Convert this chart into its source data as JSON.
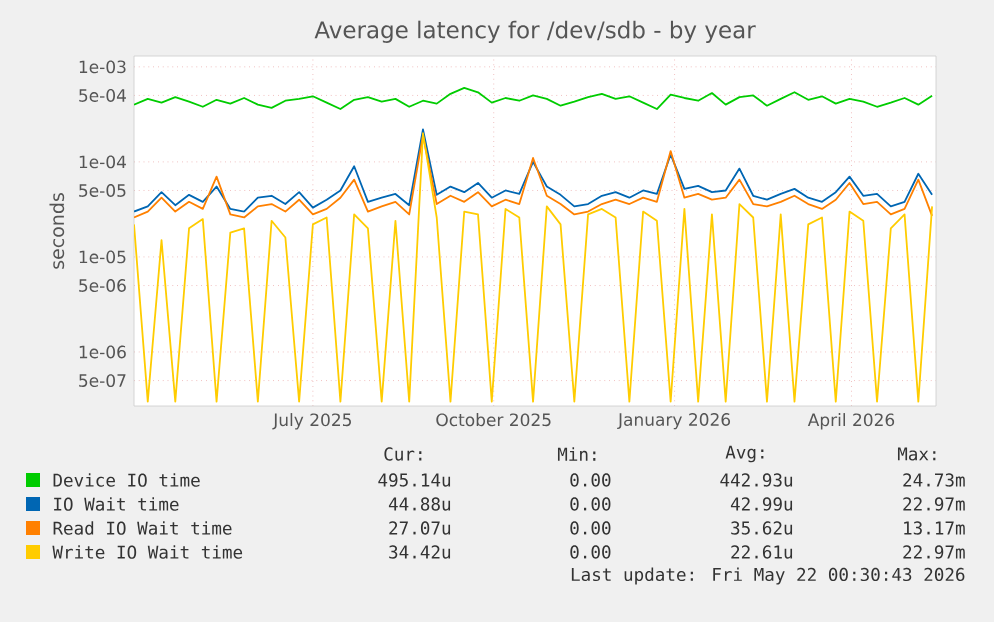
{
  "chart_data": {
    "type": "line",
    "title": "Average latency for /dev/sdb - by year",
    "ylabel": "seconds",
    "log": "y",
    "grid": true,
    "legend": "bottom",
    "xlim": [
      "2025-04-01",
      "2026-05-14"
    ],
    "xticks": [
      {
        "value": "2025-07-01",
        "label": "July 2025"
      },
      {
        "value": "2025-10-01",
        "label": "October 2025"
      },
      {
        "value": "2026-01-01",
        "label": "January 2026"
      },
      {
        "value": "2026-04-01",
        "label": "April 2026"
      }
    ],
    "ylim": [
      2.7e-07,
      0.0013
    ],
    "yticks": [
      {
        "value": 0.001,
        "label": "1e-03"
      },
      {
        "value": 0.0005,
        "label": "5e-04"
      },
      {
        "value": 0.0001,
        "label": "1e-04"
      },
      {
        "value": 5e-05,
        "label": "5e-05"
      },
      {
        "value": 1e-05,
        "label": "1e-05"
      },
      {
        "value": 5e-06,
        "label": "5e-06"
      },
      {
        "value": 1e-06,
        "label": "1e-06"
      },
      {
        "value": 5e-07,
        "label": "5e-07"
      }
    ],
    "x": [
      "2025-04-01",
      "2025-04-08",
      "2025-04-15",
      "2025-04-22",
      "2025-04-29",
      "2025-05-06",
      "2025-05-13",
      "2025-05-20",
      "2025-05-27",
      "2025-06-03",
      "2025-06-10",
      "2025-06-17",
      "2025-06-24",
      "2025-07-01",
      "2025-07-08",
      "2025-07-15",
      "2025-07-22",
      "2025-07-29",
      "2025-08-05",
      "2025-08-12",
      "2025-08-19",
      "2025-08-26",
      "2025-09-02",
      "2025-09-09",
      "2025-09-16",
      "2025-09-23",
      "2025-09-30",
      "2025-10-07",
      "2025-10-14",
      "2025-10-21",
      "2025-10-28",
      "2025-11-04",
      "2025-11-11",
      "2025-11-18",
      "2025-11-25",
      "2025-12-02",
      "2025-12-09",
      "2025-12-16",
      "2025-12-23",
      "2025-12-30",
      "2026-01-06",
      "2026-01-13",
      "2026-01-20",
      "2026-01-27",
      "2026-02-03",
      "2026-02-10",
      "2026-02-17",
      "2026-02-24",
      "2026-03-03",
      "2026-03-10",
      "2026-03-17",
      "2026-03-24",
      "2026-03-31",
      "2026-04-07",
      "2026-04-14",
      "2026-04-21",
      "2026-04-28",
      "2026-05-05",
      "2026-05-12"
    ],
    "series": [
      {
        "name": "Device IO time",
        "color": "#00cc00",
        "values": [
          0.0004,
          0.00046,
          0.00042,
          0.00048,
          0.00043,
          0.00038,
          0.00045,
          0.00041,
          0.00047,
          0.0004,
          0.00037,
          0.00044,
          0.00046,
          0.00049,
          0.00042,
          0.00036,
          0.00045,
          0.00048,
          0.00043,
          0.00046,
          0.00038,
          0.00044,
          0.00041,
          0.00052,
          0.0006,
          0.00054,
          0.00042,
          0.00047,
          0.00044,
          0.0005,
          0.00046,
          0.00039,
          0.00043,
          0.00048,
          0.00052,
          0.00046,
          0.00049,
          0.00042,
          0.00036,
          0.00051,
          0.00047,
          0.00044,
          0.00053,
          0.0004,
          0.00048,
          0.0005,
          0.00039,
          0.00046,
          0.00054,
          0.00045,
          0.00049,
          0.00041,
          0.00046,
          0.00043,
          0.00038,
          0.00042,
          0.00047,
          0.0004,
          0.000495
        ]
      },
      {
        "name": "IO Wait time",
        "color": "#0066b3",
        "values": [
          3e-05,
          3.4e-05,
          4.8e-05,
          3.5e-05,
          4.5e-05,
          3.8e-05,
          5.5e-05,
          3.2e-05,
          3e-05,
          4.2e-05,
          4.4e-05,
          3.6e-05,
          4.8e-05,
          3.3e-05,
          4e-05,
          5e-05,
          9e-05,
          3.8e-05,
          4.2e-05,
          4.6e-05,
          3.5e-05,
          0.00022,
          4.5e-05,
          5.5e-05,
          4.8e-05,
          6e-05,
          4.2e-05,
          5e-05,
          4.6e-05,
          0.0001,
          5.5e-05,
          4.5e-05,
          3.4e-05,
          3.6e-05,
          4.4e-05,
          4.8e-05,
          4.2e-05,
          5e-05,
          4.6e-05,
          0.00012,
          5.2e-05,
          5.6e-05,
          4.8e-05,
          5e-05,
          8.5e-05,
          4.4e-05,
          4e-05,
          4.6e-05,
          5.2e-05,
          4.2e-05,
          3.8e-05,
          4.8e-05,
          7e-05,
          4.4e-05,
          4.6e-05,
          3.4e-05,
          3.8e-05,
          7.5e-05,
          4.5e-05
        ]
      },
      {
        "name": "Read IO Wait time",
        "color": "#ff8000",
        "values": [
          2.6e-05,
          3e-05,
          4.2e-05,
          3e-05,
          3.8e-05,
          3.2e-05,
          7e-05,
          2.8e-05,
          2.6e-05,
          3.4e-05,
          3.6e-05,
          3e-05,
          4e-05,
          2.8e-05,
          3.2e-05,
          4.2e-05,
          6.5e-05,
          3e-05,
          3.4e-05,
          3.8e-05,
          2.8e-05,
          0.00019,
          3.6e-05,
          4.4e-05,
          3.8e-05,
          4.8e-05,
          3.4e-05,
          4e-05,
          3.6e-05,
          0.00011,
          4.4e-05,
          3.6e-05,
          2.8e-05,
          3e-05,
          3.6e-05,
          4e-05,
          3.6e-05,
          4.2e-05,
          3.8e-05,
          0.00013,
          4.2e-05,
          4.6e-05,
          4e-05,
          4.2e-05,
          6.5e-05,
          3.6e-05,
          3.4e-05,
          3.8e-05,
          4.4e-05,
          3.6e-05,
          3.2e-05,
          4e-05,
          6e-05,
          3.6e-05,
          3.8e-05,
          2.8e-05,
          3.2e-05,
          6.5e-05,
          2.7e-05
        ]
      },
      {
        "name": "Write IO Wait time",
        "color": "#ffcc00",
        "values": [
          2.2e-05,
          3e-07,
          1.5e-05,
          3e-07,
          2e-05,
          2.5e-05,
          3e-07,
          1.8e-05,
          2e-05,
          3e-07,
          2.4e-05,
          1.6e-05,
          3e-07,
          2.2e-05,
          2.6e-05,
          3e-07,
          2.8e-05,
          2e-05,
          3e-07,
          2.4e-05,
          3e-07,
          0.0002,
          2.6e-05,
          3e-07,
          3e-05,
          2.8e-05,
          3e-07,
          3.2e-05,
          2.6e-05,
          3e-07,
          3.4e-05,
          2.2e-05,
          3e-07,
          2.8e-05,
          3.2e-05,
          2.6e-05,
          3e-07,
          3e-05,
          2.4e-05,
          3e-07,
          3.2e-05,
          3e-07,
          2.8e-05,
          3e-07,
          3.6e-05,
          2.6e-05,
          3e-07,
          2.8e-05,
          3e-07,
          2.2e-05,
          2.6e-05,
          3e-07,
          3e-05,
          2.4e-05,
          3e-07,
          2e-05,
          2.8e-05,
          3e-07,
          3.4e-05
        ]
      }
    ],
    "annotations": [
      "Cur:",
      "Min:",
      "Avg:",
      "Max:",
      "495.14u",
      "0.00",
      "442.93u",
      "24.73m",
      "44.88u",
      "0.00",
      "42.99u",
      "22.97m",
      "27.07u",
      "0.00",
      "35.62u",
      "13.17m",
      "34.42u",
      "0.00",
      "22.61u",
      "22.97m",
      "Last update: Fri May 22 00:30:43 2026"
    ]
  }
}
